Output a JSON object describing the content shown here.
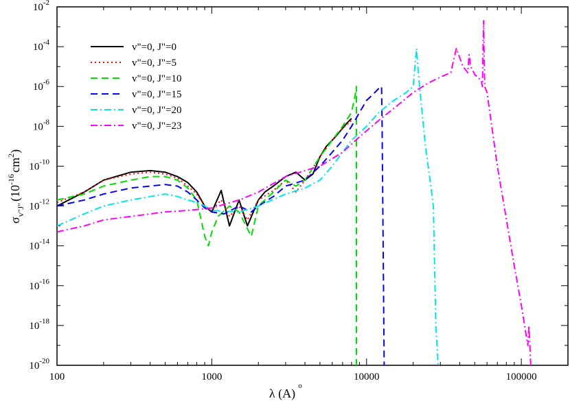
{
  "chart_data": {
    "type": "line",
    "title": "",
    "xscale": "log",
    "yscale": "log",
    "xlim": [
      100,
      200000
    ],
    "ylim": [
      1e-20,
      0.01
    ],
    "xlabel": {
      "main": "λ (",
      "ring": "o",
      "unit": "A",
      "close": ")"
    },
    "ylabel": {
      "sigma": "σ",
      "sub": "v\"J\"",
      "open": "(10",
      "exp": "-16",
      "unit": "cm",
      "unit_exp": "2",
      "close": ")"
    },
    "x_ticks": [
      "100",
      "1000",
      "10000",
      "100000"
    ],
    "y_ticks": [
      {
        "base": "10",
        "exp": "-20",
        "value": 1e-20
      },
      {
        "base": "10",
        "exp": "-18",
        "value": 1e-18
      },
      {
        "base": "10",
        "exp": "-16",
        "value": 1e-16
      },
      {
        "base": "10",
        "exp": "-14",
        "value": 1e-14
      },
      {
        "base": "10",
        "exp": "-12",
        "value": 1e-12
      },
      {
        "base": "10",
        "exp": "-10",
        "value": 1e-10
      },
      {
        "base": "10",
        "exp": "-8",
        "value": 1e-08
      },
      {
        "base": "10",
        "exp": "-6",
        "value": 1e-06
      },
      {
        "base": "10",
        "exp": "-4",
        "value": 0.0001
      },
      {
        "base": "10",
        "exp": "-2",
        "value": 0.01
      }
    ],
    "legend_position": "top-left",
    "series": [
      {
        "name": "v\"=0, J\"=0",
        "color": "#000000",
        "dash": "solid",
        "x": [
          100,
          150,
          200,
          300,
          400,
          500,
          600,
          700,
          800,
          900,
          1000,
          1150,
          1300,
          1500,
          1700,
          2000,
          2200,
          2500,
          3000,
          3500,
          4000,
          4500,
          5000,
          5500,
          6000,
          6500,
          7000,
          7500,
          8000
        ],
        "y": [
          1e-12,
          5e-12,
          2e-11,
          5e-11,
          6e-11,
          5e-11,
          3e-11,
          1.5e-11,
          5e-12,
          1e-12,
          5e-13,
          6e-12,
          1e-13,
          2e-12,
          1e-13,
          2e-12,
          5e-12,
          1e-11,
          3e-11,
          5e-11,
          2e-11,
          4e-11,
          3e-10,
          1e-09,
          2e-09,
          4e-09,
          8e-09,
          1.5e-08,
          2.5e-08
        ]
      },
      {
        "name": "v\"=0, J\"=5",
        "color": "#ff0000",
        "dash": "dotted",
        "x": [
          100,
          150,
          200,
          300,
          400,
          500,
          600,
          700,
          800,
          900,
          1000,
          1150,
          1300,
          1500,
          1700,
          2000,
          2500,
          3000,
          3500,
          4000,
          5000,
          6000,
          7000,
          8000
        ],
        "y": [
          1.5e-12,
          5e-12,
          2e-11,
          4e-11,
          5e-11,
          4e-11,
          2.5e-11,
          1e-11,
          4e-12,
          1e-12,
          6e-13,
          2e-12,
          3e-13,
          1e-12,
          2e-13,
          2e-12,
          6e-12,
          2e-11,
          5e-12,
          2e-11,
          3e-10,
          2e-09,
          8e-09,
          2e-08
        ]
      },
      {
        "name": "v\"=0, J\"=10",
        "color": "#00dd00",
        "dash": "dashed",
        "x": [
          100,
          150,
          200,
          300,
          400,
          500,
          600,
          700,
          800,
          900,
          950,
          1000,
          1100,
          1300,
          1500,
          1800,
          2000,
          2500,
          3000,
          3500,
          4000,
          5000,
          6000,
          7000,
          8000,
          8500,
          8600,
          8600,
          8700
        ],
        "y": [
          2e-12,
          4e-12,
          1e-11,
          2e-11,
          3e-11,
          3e-11,
          2e-11,
          8e-12,
          2e-12,
          3e-14,
          1e-14,
          5e-14,
          3e-13,
          1e-12,
          5e-13,
          3e-14,
          1e-12,
          5e-12,
          2e-11,
          1e-11,
          2e-11,
          3e-10,
          2e-09,
          1e-08,
          5e-08,
          5e-07,
          1e-06,
          1e-20,
          1e-20
        ]
      },
      {
        "name": "v\"=0, J\"=15",
        "color": "#0000ff",
        "dash": "dashed",
        "x": [
          100,
          150,
          200,
          300,
          400,
          500,
          600,
          700,
          800,
          900,
          1000,
          1200,
          1500,
          1800,
          2000,
          2500,
          3000,
          4000,
          5000,
          6000,
          7000,
          8000,
          9000,
          10000,
          11000,
          12000,
          12500,
          12600,
          12800,
          13000
        ],
        "y": [
          1e-12,
          2e-12,
          4e-12,
          8e-12,
          1e-11,
          1.2e-11,
          1e-11,
          5e-12,
          2e-12,
          8e-13,
          5e-13,
          4e-13,
          1e-12,
          5e-13,
          1e-12,
          3e-12,
          1e-11,
          2e-11,
          1e-10,
          5e-10,
          2e-09,
          1e-08,
          5e-08,
          2e-07,
          4e-07,
          8e-07,
          1e-06,
          1e-08,
          1e-14,
          1e-20
        ]
      },
      {
        "name": "v\"=0, J\"=20",
        "color": "#00e5ee",
        "dash": "dash-dot",
        "x": [
          100,
          150,
          200,
          300,
          400,
          500,
          600,
          700,
          800,
          900,
          1000,
          1500,
          2000,
          3000,
          4000,
          5000,
          6000,
          7000,
          8000,
          10000,
          12000,
          15000,
          18000,
          20000,
          21000,
          22000,
          24000,
          26000,
          27000,
          28000,
          29000
        ],
        "y": [
          1e-13,
          4e-13,
          1e-12,
          2e-12,
          3e-12,
          4e-12,
          3e-12,
          2e-12,
          1.5e-12,
          1e-12,
          6e-13,
          5e-13,
          1e-12,
          4e-12,
          8e-12,
          2e-11,
          1e-10,
          5e-10,
          2e-09,
          1e-08,
          5e-08,
          2e-07,
          5e-07,
          1e-06,
          8e-05,
          1e-06,
          1e-09,
          1e-11,
          1e-12,
          1e-18,
          1e-20
        ]
      },
      {
        "name": "v\"=0, J\"=23",
        "color": "#ff00ff",
        "dash": "dash-dot",
        "x": [
          100,
          150,
          200,
          300,
          400,
          500,
          700,
          1000,
          1500,
          2000,
          3000,
          5000,
          7000,
          9000,
          12000,
          15000,
          20000,
          25000,
          30000,
          35000,
          38000,
          42000,
          45000,
          46000,
          47000,
          50000,
          55000,
          56000,
          57000,
          58000,
          60000,
          70000,
          90000,
          100000,
          110000,
          112000,
          115000
        ],
        "y": [
          5e-14,
          1e-13,
          2e-13,
          3e-13,
          4e-13,
          5e-13,
          6e-13,
          8e-13,
          2e-12,
          5e-12,
          3e-11,
          1e-10,
          5e-10,
          3e-09,
          2e-08,
          8e-08,
          5e-07,
          1.5e-06,
          3e-06,
          5e-06,
          8e-05,
          1e-05,
          5e-06,
          4e-05,
          1e-05,
          4e-06,
          2e-06,
          1e-06,
          0.002,
          1e-06,
          5e-07,
          1e-10,
          1e-15,
          1e-17,
          1e-19,
          1e-18,
          1e-20
        ]
      }
    ]
  }
}
